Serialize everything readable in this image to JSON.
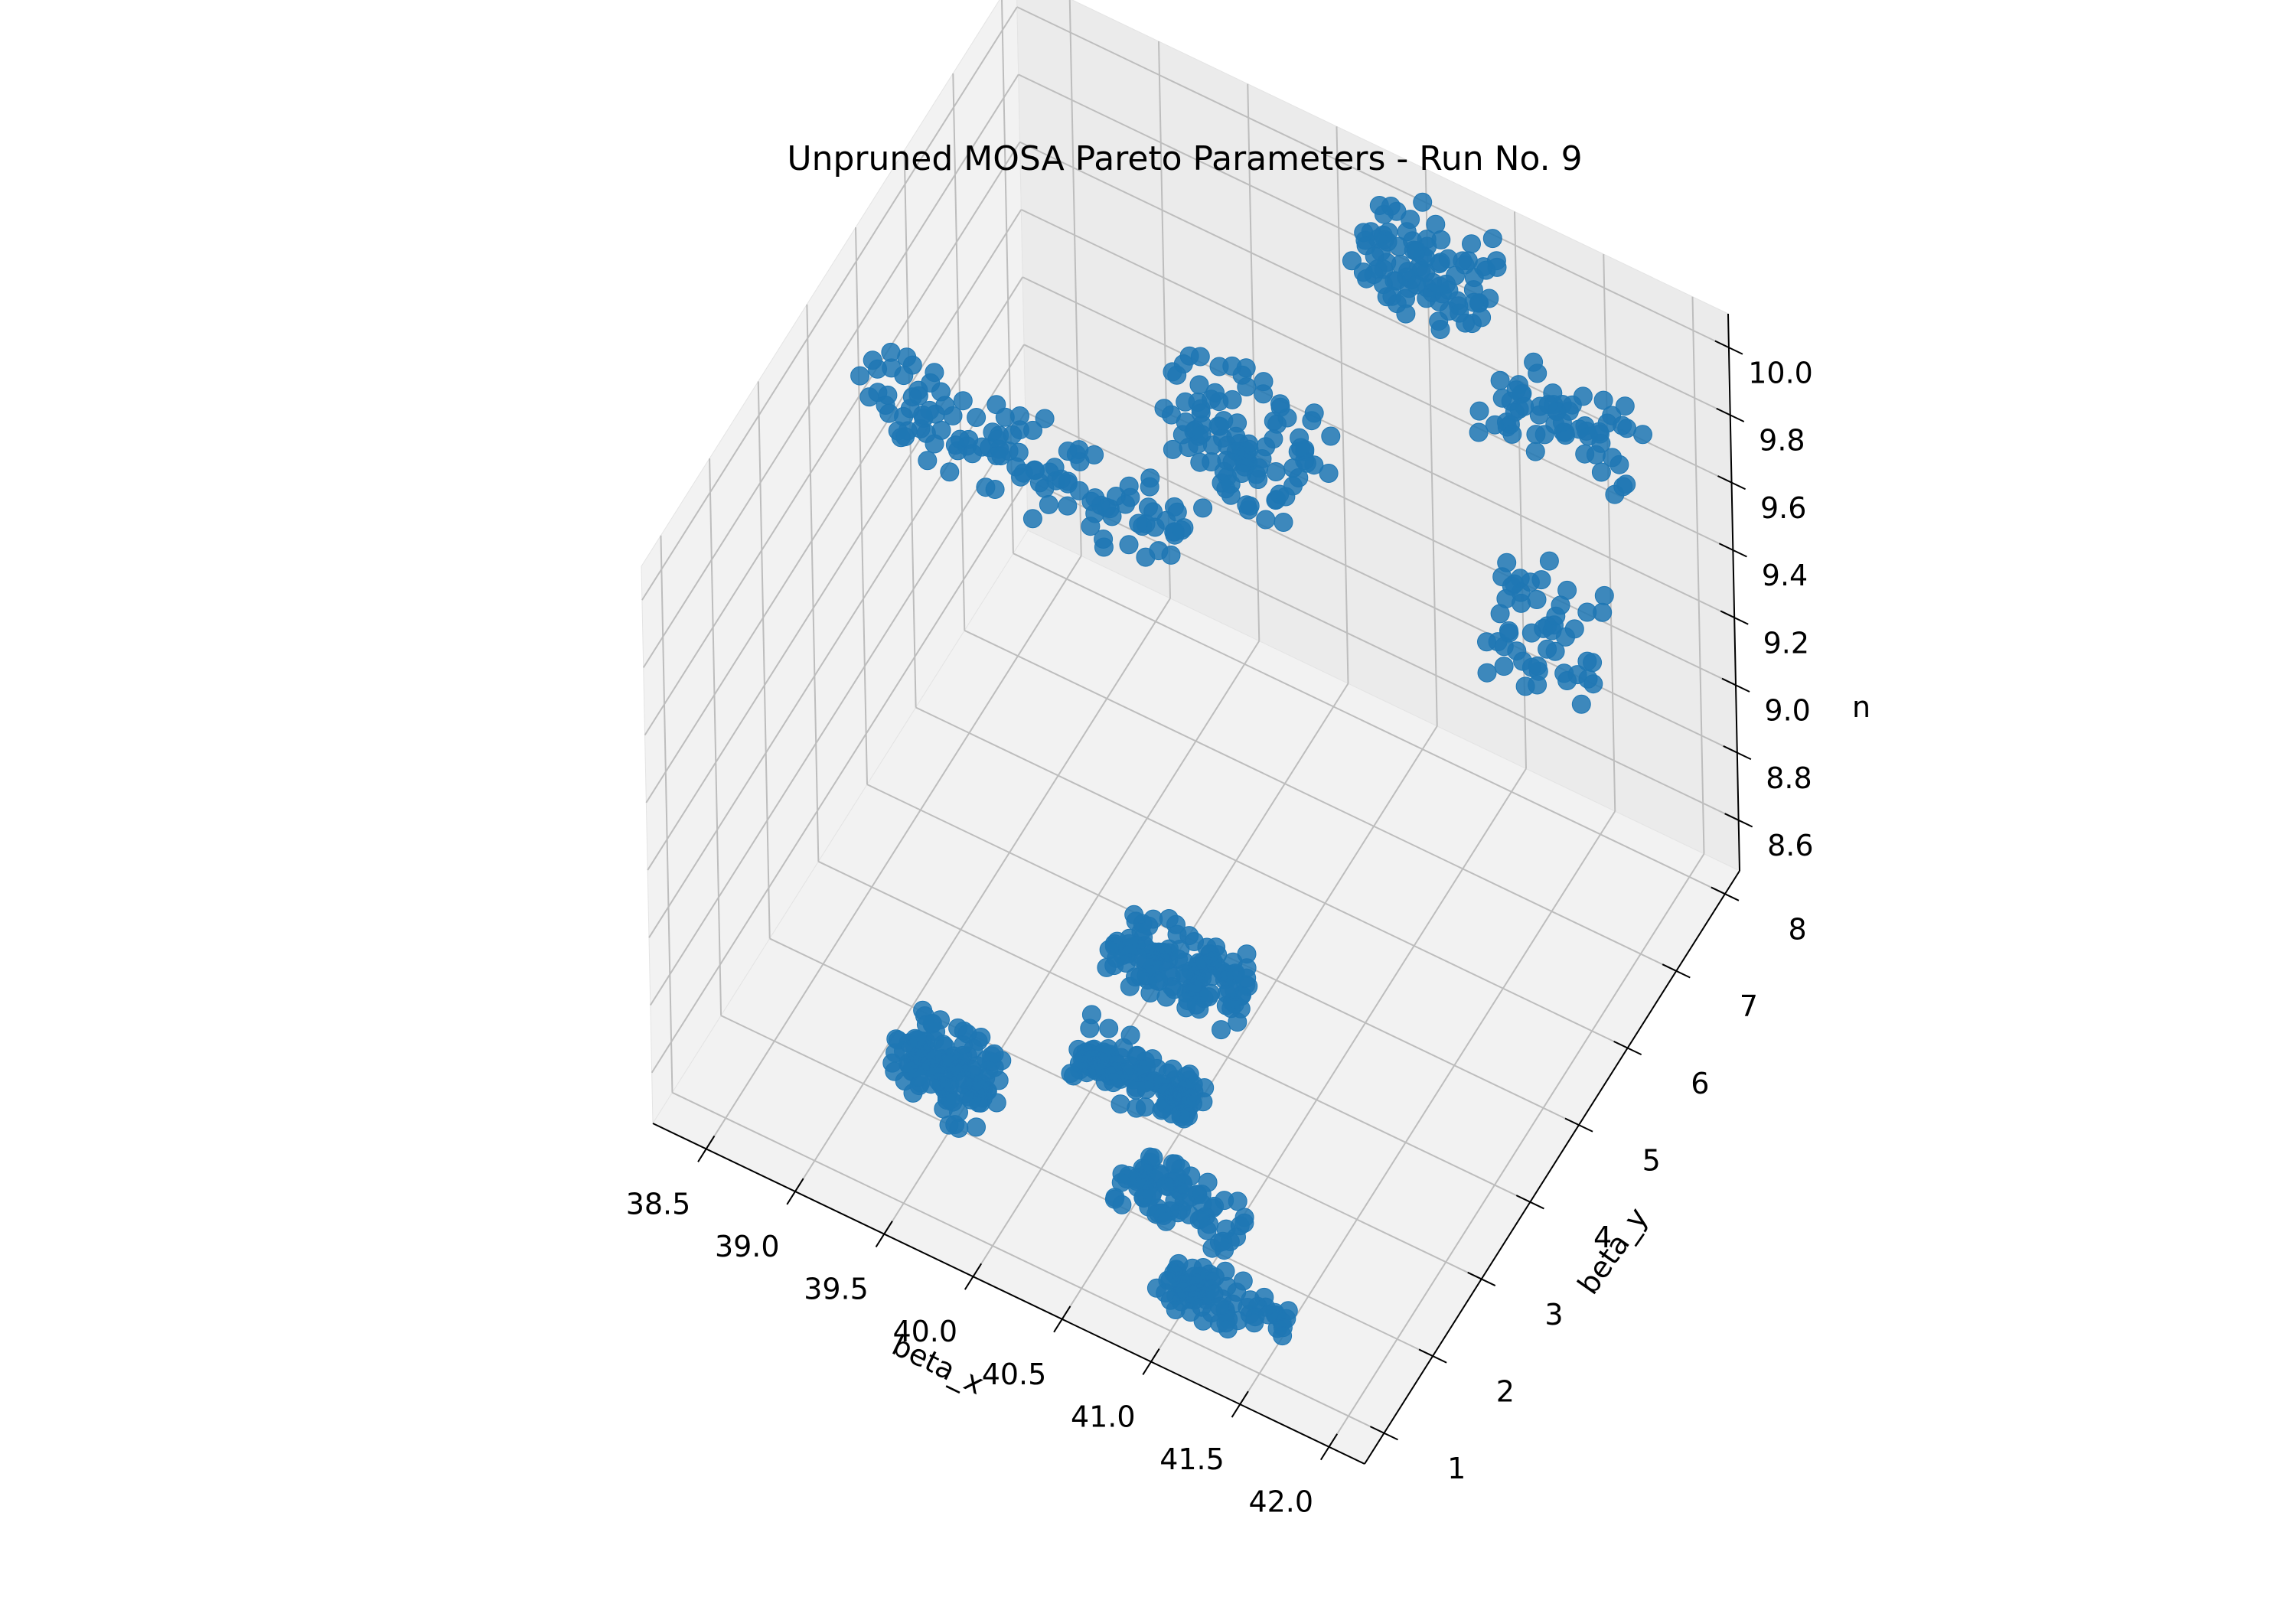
{
  "chart_data": {
    "type": "scatter",
    "projection": "3d",
    "title": "Unpruned MOSA Pareto Parameters - Run No. 9",
    "xlabel": "beta_x",
    "ylabel": "beta_y",
    "zlabel": "n",
    "xlim": [
      38.2,
      42.2
    ],
    "ylim": [
      0.6,
      8.3
    ],
    "zlim": [
      8.45,
      10.1
    ],
    "xticks": [
      "38.5",
      "39.0",
      "39.5",
      "40.0",
      "40.5",
      "41.0",
      "41.5",
      "42.0"
    ],
    "yticks": [
      "1",
      "2",
      "3",
      "4",
      "5",
      "6",
      "7",
      "8"
    ],
    "zticks": [
      "8.6",
      "8.8",
      "9.0",
      "9.2",
      "9.4",
      "9.6",
      "9.8",
      "10.0"
    ],
    "grid": true,
    "pane_color": "#f2f2f2",
    "marker_color": "#1f77b4",
    "clusters": [
      {
        "x": [
          38.3,
          40.1
        ],
        "y": [
          4.6,
          5.0
        ],
        "z": [
          9.6,
          9.8
        ],
        "n": 120
      },
      {
        "x": [
          39.6,
          40.4
        ],
        "y": [
          5.9,
          6.8
        ],
        "z": [
          9.45,
          9.75
        ],
        "n": 100
      },
      {
        "x": [
          40.3,
          41.0
        ],
        "y": [
          7.3,
          8.2
        ],
        "z": [
          9.9,
          10.05
        ],
        "n": 90
      },
      {
        "x": [
          41.3,
          42.1
        ],
        "y": [
          6.4,
          7.1
        ],
        "z": [
          9.95,
          10.05
        ],
        "n": 60
      },
      {
        "x": [
          41.5,
          42.1
        ],
        "y": [
          5.7,
          6.2
        ],
        "z": [
          9.45,
          9.75
        ],
        "n": 50
      },
      {
        "x": [
          39.2,
          39.7
        ],
        "y": [
          1.8,
          2.4
        ],
        "z": [
          8.5,
          8.65
        ],
        "n": 120
      },
      {
        "x": [
          39.8,
          40.5
        ],
        "y": [
          4.0,
          4.6
        ],
        "z": [
          8.5,
          8.62
        ],
        "n": 120
      },
      {
        "x": [
          39.9,
          40.6
        ],
        "y": [
          2.8,
          3.3
        ],
        "z": [
          8.5,
          8.6
        ],
        "n": 110
      },
      {
        "x": [
          40.4,
          41.1
        ],
        "y": [
          1.8,
          2.3
        ],
        "z": [
          8.5,
          8.58
        ],
        "n": 80
      },
      {
        "x": [
          40.9,
          41.6
        ],
        "y": [
          1.0,
          1.5
        ],
        "z": [
          8.5,
          8.58
        ],
        "n": 80
      }
    ]
  }
}
